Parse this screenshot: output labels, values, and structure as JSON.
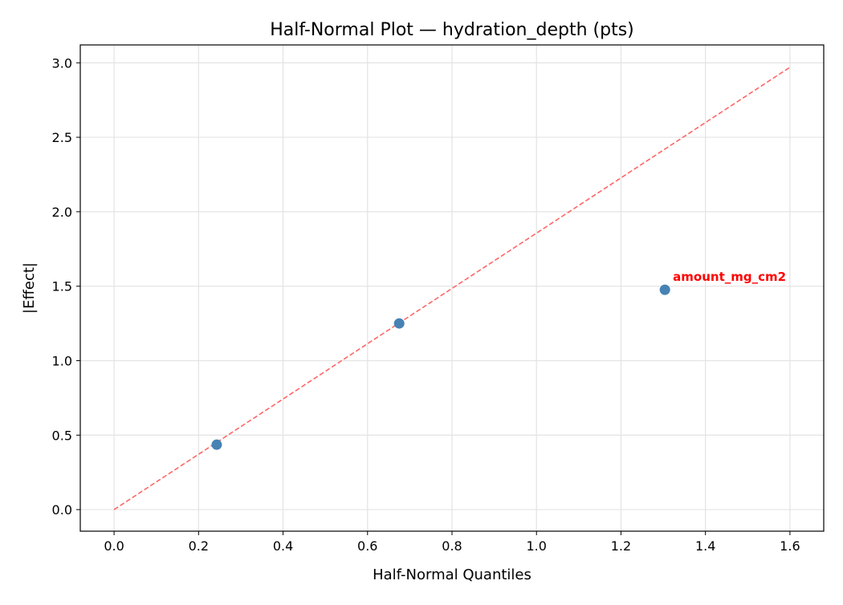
{
  "chart_data": {
    "type": "scatter",
    "title": "Half-Normal Plot — hydration_depth (pts)",
    "xlabel": "Half-Normal Quantiles",
    "ylabel": "|Effect|",
    "xlim": [
      -0.08,
      1.68
    ],
    "ylim": [
      -0.145,
      3.12
    ],
    "xticks": [
      "0.0",
      "0.2",
      "0.4",
      "0.6",
      "0.8",
      "1.0",
      "1.2",
      "1.4",
      "1.6"
    ],
    "yticks": [
      "0.0",
      "0.5",
      "1.0",
      "1.5",
      "2.0",
      "2.5",
      "3.0"
    ],
    "grid": true,
    "points": [
      {
        "x": 0.243,
        "y": 0.436
      },
      {
        "x": 0.675,
        "y": 1.25
      },
      {
        "x": 1.304,
        "y": 1.476,
        "label": "amount_mg_cm2"
      }
    ],
    "reference_line": {
      "x": [
        0,
        1.6
      ],
      "y": [
        0,
        2.97
      ],
      "style": "dashed"
    },
    "colors": {
      "points": "#4682b4",
      "line": "#ff6666",
      "label": "#ff0000"
    }
  }
}
